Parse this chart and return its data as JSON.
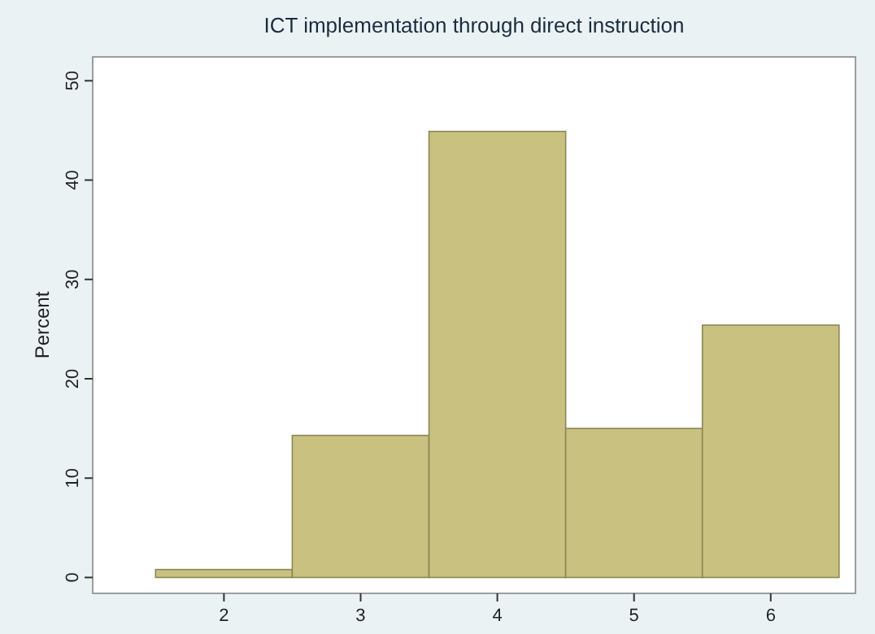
{
  "chart_data": {
    "type": "histogram",
    "title": "ICT implementation through direct instruction",
    "ylabel": "Percent",
    "bins": [
      1.5,
      2.5,
      3.5,
      4.5,
      5.5,
      6.5
    ],
    "values": [
      0.8,
      14.3,
      44.9,
      15,
      25.4
    ],
    "color": "#c9c17f",
    "xlim": [
      1.04,
      6.62
    ],
    "xticks": [
      2,
      3,
      4,
      5,
      6
    ],
    "ylim": [
      -1.6,
      52.4
    ],
    "yticks": [
      0,
      10,
      20,
      30,
      40,
      50
    ],
    "grid": false
  }
}
